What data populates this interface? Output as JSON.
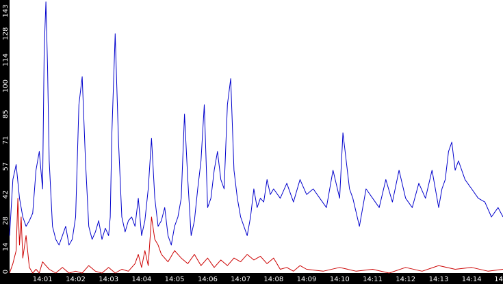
{
  "chart_data": {
    "type": "line",
    "title": "",
    "xlabel": "",
    "ylabel": "",
    "grid": false,
    "legend": "none",
    "background_color": "#ffffff",
    "axis_strip_color": "#000000",
    "tick_label_color": "#ffffff",
    "xlim": [
      0.0,
      14.95
    ],
    "ylim": [
      0,
      146
    ],
    "y_ticks": [
      {
        "value": 0,
        "label": "0"
      },
      {
        "value": 14,
        "label": "14"
      },
      {
        "value": 28,
        "label": "28"
      },
      {
        "value": 42,
        "label": "42"
      },
      {
        "value": 57,
        "label": "57"
      },
      {
        "value": 71,
        "label": "71"
      },
      {
        "value": 85,
        "label": "85"
      },
      {
        "value": 100,
        "label": "100"
      },
      {
        "value": 114,
        "label": "114"
      },
      {
        "value": 128,
        "label": "128"
      },
      {
        "value": 143,
        "label": "143"
      }
    ],
    "x_ticks": [
      {
        "value": 1,
        "label": "14:01"
      },
      {
        "value": 2,
        "label": "14:02"
      },
      {
        "value": 3,
        "label": "14:03"
      },
      {
        "value": 4,
        "label": "14:04"
      },
      {
        "value": 5,
        "label": "14:05"
      },
      {
        "value": 6,
        "label": "14:06"
      },
      {
        "value": 7,
        "label": "14:07"
      },
      {
        "value": 8,
        "label": "14:08"
      },
      {
        "value": 9,
        "label": "14:09"
      },
      {
        "value": 10,
        "label": "14:10"
      },
      {
        "value": 11,
        "label": "14:11"
      },
      {
        "value": 12,
        "label": "14:12"
      },
      {
        "value": 13,
        "label": "14:13"
      },
      {
        "value": 14,
        "label": "14:14"
      },
      {
        "value": 14.95,
        "label": "14"
      }
    ],
    "series": [
      {
        "color": "#0000cc",
        "x": [
          0.0,
          0.1,
          0.2,
          0.3,
          0.4,
          0.5,
          0.6,
          0.7,
          0.8,
          0.9,
          1.0,
          1.05,
          1.1,
          1.15,
          1.2,
          1.3,
          1.4,
          1.5,
          1.6,
          1.7,
          1.8,
          1.9,
          2.0,
          2.1,
          2.2,
          2.3,
          2.4,
          2.5,
          2.6,
          2.7,
          2.8,
          2.9,
          3.0,
          3.05,
          3.1,
          3.2,
          3.3,
          3.4,
          3.5,
          3.6,
          3.7,
          3.8,
          3.9,
          4.0,
          4.1,
          4.2,
          4.3,
          4.4,
          4.5,
          4.6,
          4.7,
          4.8,
          4.9,
          5.0,
          5.1,
          5.2,
          5.3,
          5.4,
          5.5,
          5.6,
          5.7,
          5.8,
          5.9,
          6.0,
          6.1,
          6.2,
          6.3,
          6.4,
          6.5,
          6.6,
          6.7,
          6.8,
          6.9,
          7.0,
          7.1,
          7.2,
          7.3,
          7.4,
          7.5,
          7.6,
          7.7,
          7.8,
          7.9,
          8.0,
          8.2,
          8.4,
          8.6,
          8.8,
          9.0,
          9.2,
          9.4,
          9.6,
          9.8,
          10.0,
          10.1,
          10.2,
          10.3,
          10.4,
          10.6,
          10.8,
          11.0,
          11.2,
          11.4,
          11.6,
          11.8,
          12.0,
          12.2,
          12.4,
          12.6,
          12.8,
          13.0,
          13.1,
          13.2,
          13.3,
          13.4,
          13.5,
          13.6,
          13.8,
          14.0,
          14.2,
          14.4,
          14.6,
          14.8,
          14.95
        ],
        "y": [
          20,
          50,
          58,
          40,
          30,
          25,
          28,
          32,
          55,
          65,
          45,
          120,
          145,
          110,
          60,
          25,
          18,
          15,
          20,
          25,
          15,
          18,
          30,
          90,
          105,
          60,
          25,
          18,
          22,
          28,
          18,
          24,
          20,
          30,
          75,
          128,
          70,
          30,
          22,
          28,
          30,
          25,
          40,
          20,
          28,
          45,
          72,
          40,
          25,
          28,
          35,
          20,
          15,
          25,
          30,
          40,
          85,
          50,
          20,
          28,
          45,
          60,
          90,
          35,
          40,
          55,
          65,
          50,
          45,
          90,
          104,
          55,
          40,
          30,
          25,
          20,
          30,
          45,
          35,
          40,
          38,
          50,
          42,
          45,
          40,
          48,
          38,
          50,
          42,
          45,
          40,
          35,
          55,
          40,
          75,
          60,
          45,
          40,
          25,
          45,
          40,
          35,
          50,
          38,
          55,
          40,
          35,
          48,
          40,
          55,
          35,
          45,
          50,
          65,
          70,
          55,
          60,
          50,
          45,
          40,
          38,
          30,
          35,
          30
        ]
      },
      {
        "color": "#cc0000",
        "x": [
          0.0,
          0.1,
          0.2,
          0.25,
          0.3,
          0.35,
          0.4,
          0.5,
          0.6,
          0.7,
          0.8,
          0.9,
          1.0,
          1.2,
          1.4,
          1.6,
          1.8,
          2.0,
          2.2,
          2.4,
          2.6,
          2.8,
          3.0,
          3.2,
          3.4,
          3.6,
          3.8,
          3.9,
          4.0,
          4.1,
          4.2,
          4.3,
          4.4,
          4.5,
          4.6,
          4.8,
          5.0,
          5.2,
          5.4,
          5.6,
          5.8,
          6.0,
          6.2,
          6.4,
          6.6,
          6.8,
          7.0,
          7.2,
          7.4,
          7.6,
          7.8,
          8.0,
          8.2,
          8.4,
          8.6,
          8.8,
          9.0,
          9.5,
          10.0,
          10.5,
          11.0,
          11.5,
          12.0,
          12.5,
          13.0,
          13.5,
          14.0,
          14.5,
          14.95
        ],
        "y": [
          0,
          5,
          12,
          40,
          15,
          30,
          8,
          20,
          3,
          0,
          2,
          0,
          6,
          2,
          0,
          3,
          0,
          1,
          0,
          4,
          1,
          0,
          3,
          0,
          2,
          1,
          5,
          10,
          3,
          12,
          4,
          30,
          18,
          15,
          10,
          6,
          12,
          8,
          5,
          10,
          4,
          8,
          3,
          7,
          4,
          8,
          6,
          10,
          7,
          9,
          5,
          8,
          2,
          3,
          1,
          4,
          2,
          1,
          3,
          1,
          2,
          0,
          3,
          1,
          4,
          2,
          3,
          1,
          2
        ]
      }
    ]
  }
}
